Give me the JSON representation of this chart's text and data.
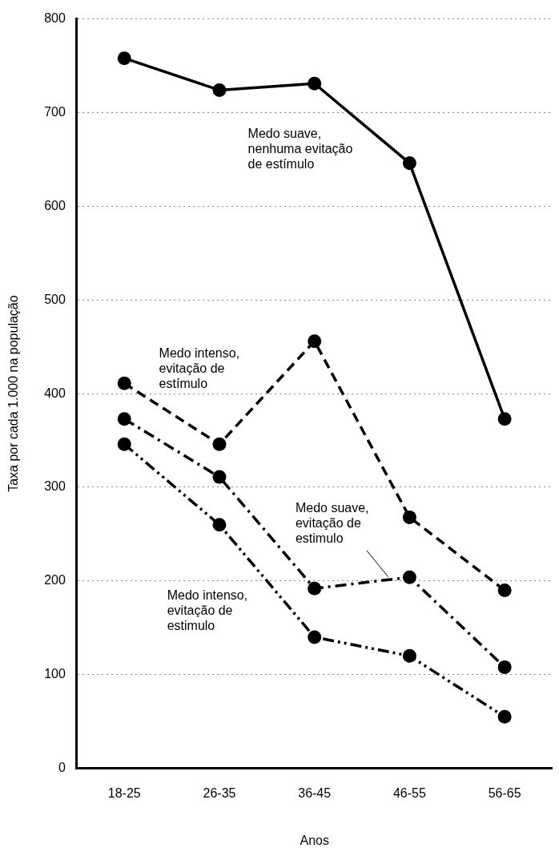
{
  "chart_data": {
    "type": "line",
    "xlabel": "Anos",
    "ylabel": "Taxa por cada 1.000 na população",
    "categories": [
      "18-25",
      "26-35",
      "36-45",
      "46-55",
      "56-65"
    ],
    "ylim": [
      0,
      800
    ],
    "yticks": [
      0,
      100,
      200,
      300,
      400,
      500,
      600,
      700,
      800
    ],
    "grid": "y",
    "legend": false,
    "marker": "circle",
    "series": [
      {
        "name": "Medo suave, nenhuma evitação de estímulo",
        "color": "#000000",
        "line_style": "solid",
        "values": [
          758,
          724,
          731,
          646,
          373
        ]
      },
      {
        "name": "Medo intenso, evitação de estímulo",
        "color": "#000000",
        "line_style": "dashed",
        "values": [
          411,
          346,
          456,
          268,
          190
        ]
      },
      {
        "name": "Medo suave, evitação de estimulo",
        "color": "#000000",
        "line_style": "dashdot",
        "values": [
          373,
          311,
          192,
          204,
          108
        ]
      },
      {
        "name": "Medo intenso, evitação de estimulo",
        "color": "#000000",
        "line_style": "dashdotdot",
        "values": [
          346,
          260,
          140,
          120,
          55
        ]
      }
    ]
  }
}
